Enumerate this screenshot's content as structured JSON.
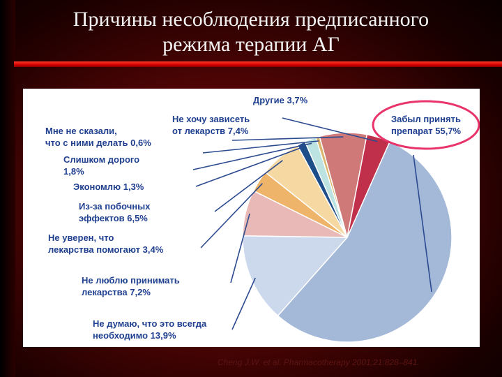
{
  "title_lines": [
    "Причины несоблюдения предписанного",
    "режима терапии АГ"
  ],
  "citation": "Cheng J.W. et al. Pharmacotherapy 2001;21:828–841.",
  "chart_data": {
    "type": "pie",
    "title": "",
    "slices": [
      {
        "lines": [
          "Забыл принять",
          "препарат 55,7%"
        ],
        "value": 55.7,
        "color": "#a4b8d8"
      },
      {
        "lines": [
          "Не думаю, что это всегда",
          "необходимо 13,9%"
        ],
        "value": 13.9,
        "color": "#ccd8ec"
      },
      {
        "lines": [
          "Не люблю принимать",
          "лекарства 7,2%"
        ],
        "value": 7.2,
        "color": "#e8b9b6"
      },
      {
        "lines": [
          "Не уверен, что",
          "лекарства помогают   3,4%"
        ],
        "value": 3.4,
        "color": "#eeb56a"
      },
      {
        "lines": [
          "Из-за побочных",
          "эффектов 6,5%"
        ],
        "value": 6.5,
        "color": "#f5d8a2"
      },
      {
        "lines": [
          "Экономлю 1,3%"
        ],
        "value": 1.3,
        "color": "#1e4e8a"
      },
      {
        "lines": [
          "Слишком дорого",
          "1,8%"
        ],
        "value": 1.8,
        "color": "#bde2e2"
      },
      {
        "lines": [
          "Мне не сказали,",
          "что с ними делать 0,6%"
        ],
        "value": 0.6,
        "color": "#d9b36a"
      },
      {
        "lines": [
          "Не хочу зависеть",
          "от лекарств 7,4%"
        ],
        "value": 7.4,
        "color": "#cf7a78"
      },
      {
        "lines": [
          "Другие 3,7%"
        ],
        "value": 3.7,
        "color": "#c0304a"
      }
    ]
  }
}
